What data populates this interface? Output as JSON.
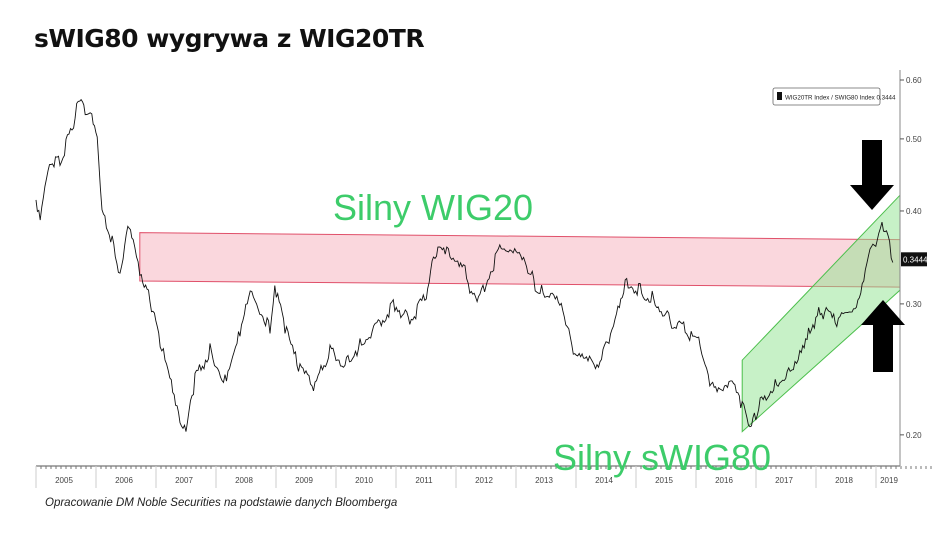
{
  "title": "sWIG80 wygrywa z WIG20TR",
  "footer": "Opracowanie DM Noble Securities na podstawie danych Bloomberga",
  "chart_data": {
    "type": "line",
    "title": "sWIG80 wygrywa z WIG20TR",
    "xlabel": "",
    "ylabel": "",
    "y_scale": "log",
    "ylim": [
      0.19,
      0.62
    ],
    "xlim": [
      2005.0,
      2019.4
    ],
    "grid": false,
    "legend": {
      "placement": "top-right",
      "entries": [
        "WIG20TR Index / SWIG80 Index 0.3444"
      ]
    },
    "last_value_label": "0.3444",
    "x_ticks": [
      "2005",
      "2006",
      "2007",
      "2008",
      "2009",
      "2010",
      "2011",
      "2012",
      "2013",
      "2014",
      "2015",
      "2016",
      "2017",
      "2018",
      "2019"
    ],
    "y_ticks": [
      {
        "value": 0.6,
        "label": "0.60"
      },
      {
        "value": 0.5,
        "label": "0.50"
      },
      {
        "value": 0.4,
        "label": "0.40"
      },
      {
        "value": 0.3,
        "label": "0.30"
      },
      {
        "value": 0.2,
        "label": "0.20"
      }
    ],
    "series": [
      {
        "name": "WIG20TR Index / SWIG80 Index",
        "color": "#111111",
        "x": [
          2005.0,
          2005.07,
          2005.2,
          2005.4,
          2005.6,
          2005.73,
          2005.82,
          2005.93,
          2006.02,
          2006.1,
          2006.27,
          2006.4,
          2006.53,
          2006.62,
          2006.73,
          2006.9,
          2007.07,
          2007.23,
          2007.4,
          2007.5,
          2007.65,
          2007.9,
          2008.15,
          2008.4,
          2008.57,
          2008.73,
          2008.9,
          2008.98,
          2009.15,
          2009.4,
          2009.65,
          2009.9,
          2010.15,
          2010.4,
          2010.73,
          2010.98,
          2011.23,
          2011.48,
          2011.65,
          2011.82,
          2011.98,
          2012.15,
          2012.23,
          2012.4,
          2012.73,
          2012.9,
          2013.03,
          2013.15,
          2013.32,
          2013.48,
          2013.73,
          2013.98,
          2014.15,
          2014.4,
          2014.65,
          2014.82,
          2015.07,
          2015.32,
          2015.57,
          2015.82,
          2016.07,
          2016.23,
          2016.4,
          2016.6,
          2016.77,
          2016.9,
          2017.07,
          2017.32,
          2017.57,
          2017.73,
          2017.9,
          2018.07,
          2018.32,
          2018.48,
          2018.65,
          2018.77,
          2018.9,
          2019.02,
          2019.1,
          2019.2,
          2019.28
        ],
        "y": [
          0.414,
          0.395,
          0.461,
          0.468,
          0.514,
          0.573,
          0.538,
          0.53,
          0.498,
          0.395,
          0.366,
          0.328,
          0.389,
          0.371,
          0.333,
          0.304,
          0.268,
          0.237,
          0.206,
          0.202,
          0.237,
          0.26,
          0.237,
          0.277,
          0.318,
          0.294,
          0.277,
          0.318,
          0.277,
          0.244,
          0.233,
          0.26,
          0.248,
          0.264,
          0.285,
          0.299,
          0.285,
          0.304,
          0.349,
          0.354,
          0.338,
          0.333,
          0.308,
          0.308,
          0.354,
          0.36,
          0.357,
          0.344,
          0.318,
          0.308,
          0.299,
          0.256,
          0.252,
          0.249,
          0.285,
          0.323,
          0.313,
          0.304,
          0.285,
          0.277,
          0.264,
          0.233,
          0.226,
          0.233,
          0.219,
          0.202,
          0.223,
          0.233,
          0.244,
          0.26,
          0.277,
          0.294,
          0.285,
          0.288,
          0.291,
          0.313,
          0.349,
          0.365,
          0.38,
          0.377,
          0.341
        ]
      }
    ],
    "bands": [
      {
        "label": "Silny WIG20",
        "type": "horizontal-channel",
        "color": "#f4a6b4",
        "x": [
          2006.73,
          2019.4
        ],
        "upper": [
          0.374,
          0.366
        ],
        "lower": [
          0.322,
          0.316
        ]
      },
      {
        "label": "Silny sWIG80",
        "type": "rising-channel",
        "color": "#8fe38f",
        "x": [
          2016.77,
          2019.4
        ],
        "upper": [
          0.252,
          0.42
        ],
        "lower": [
          0.202,
          0.313
        ]
      }
    ],
    "annotations": [
      {
        "text": "Silny WIG20",
        "color": "#3dcc6a"
      },
      {
        "text": "Silny sWIG80",
        "color": "#3dcc6a"
      }
    ],
    "arrows": [
      {
        "direction": "down",
        "color": "#000000"
      },
      {
        "direction": "up",
        "color": "#000000"
      }
    ]
  }
}
